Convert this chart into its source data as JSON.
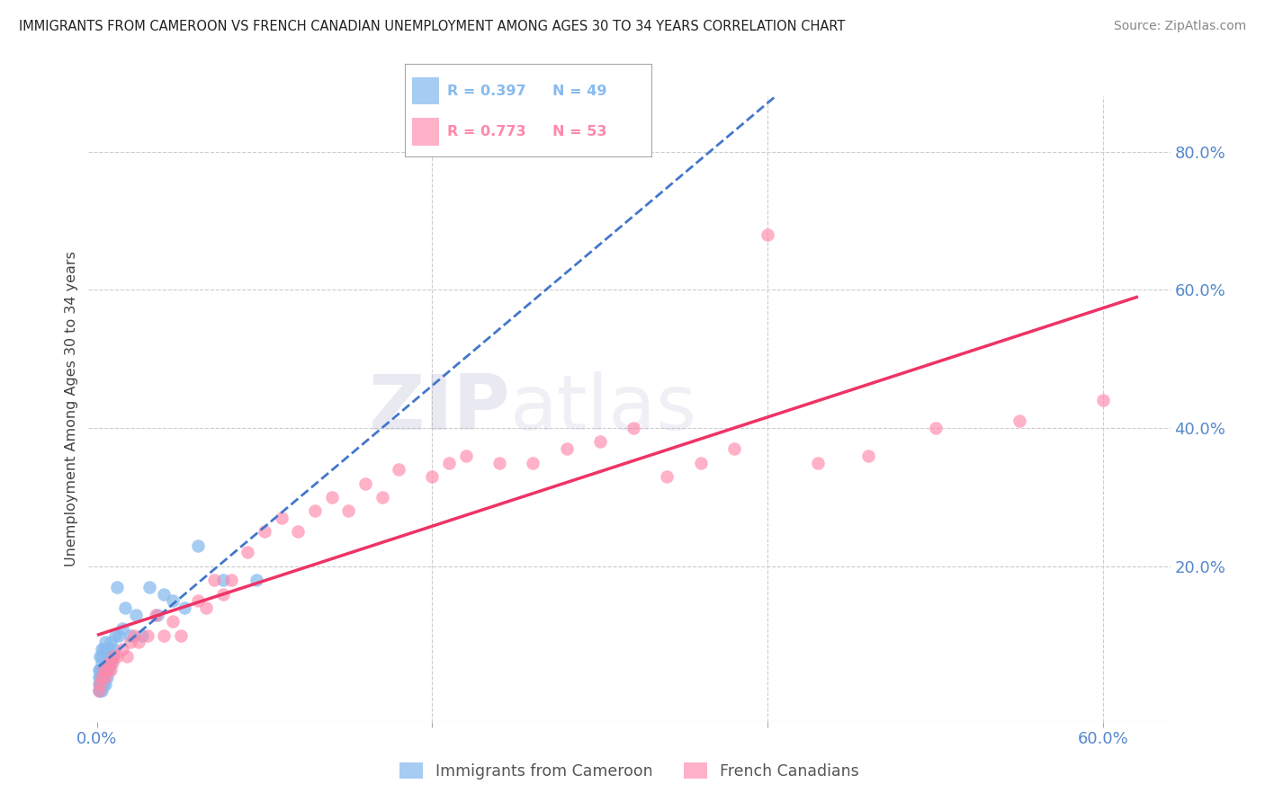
{
  "title": "IMMIGRANTS FROM CAMEROON VS FRENCH CANADIAN UNEMPLOYMENT AMONG AGES 30 TO 34 YEARS CORRELATION CHART",
  "source": "Source: ZipAtlas.com",
  "ylabel": "Unemployment Among Ages 30 to 34 years",
  "legend_labels": [
    "Immigrants from Cameroon",
    "French Canadians"
  ],
  "blue_r": "R = 0.397",
  "blue_n": "N = 49",
  "pink_r": "R = 0.773",
  "pink_n": "N = 53",
  "blue_color": "#88bbee",
  "pink_color": "#ff88aa",
  "blue_line_color": "#4477cc",
  "pink_line_color": "#ee3366",
  "xlim": [
    -0.005,
    0.64
  ],
  "ylim": [
    -0.025,
    0.88
  ],
  "watermark_zip": "ZIP",
  "watermark_atlas": "atlas",
  "background_color": "#ffffff",
  "grid_color": "#cccccc",
  "blue_x": [
    0.001,
    0.001,
    0.001,
    0.001,
    0.002,
    0.002,
    0.002,
    0.002,
    0.002,
    0.003,
    0.003,
    0.003,
    0.003,
    0.003,
    0.003,
    0.003,
    0.004,
    0.004,
    0.004,
    0.004,
    0.005,
    0.005,
    0.005,
    0.005,
    0.006,
    0.006,
    0.006,
    0.007,
    0.007,
    0.008,
    0.008,
    0.009,
    0.01,
    0.011,
    0.012,
    0.013,
    0.015,
    0.017,
    0.02,
    0.023,
    0.027,
    0.031,
    0.036,
    0.04,
    0.045,
    0.052,
    0.06,
    0.075,
    0.095
  ],
  "blue_y": [
    0.02,
    0.03,
    0.04,
    0.05,
    0.02,
    0.03,
    0.04,
    0.05,
    0.07,
    0.02,
    0.03,
    0.04,
    0.05,
    0.06,
    0.07,
    0.08,
    0.03,
    0.04,
    0.05,
    0.08,
    0.03,
    0.05,
    0.06,
    0.09,
    0.04,
    0.06,
    0.08,
    0.05,
    0.08,
    0.06,
    0.09,
    0.07,
    0.08,
    0.1,
    0.17,
    0.1,
    0.11,
    0.14,
    0.1,
    0.13,
    0.1,
    0.17,
    0.13,
    0.16,
    0.15,
    0.14,
    0.23,
    0.18,
    0.18
  ],
  "pink_x": [
    0.001,
    0.002,
    0.003,
    0.004,
    0.005,
    0.006,
    0.007,
    0.008,
    0.009,
    0.01,
    0.012,
    0.015,
    0.018,
    0.02,
    0.022,
    0.025,
    0.03,
    0.035,
    0.04,
    0.045,
    0.05,
    0.06,
    0.065,
    0.07,
    0.075,
    0.08,
    0.09,
    0.1,
    0.11,
    0.12,
    0.13,
    0.14,
    0.15,
    0.16,
    0.17,
    0.18,
    0.2,
    0.21,
    0.22,
    0.24,
    0.26,
    0.28,
    0.3,
    0.32,
    0.34,
    0.36,
    0.38,
    0.4,
    0.43,
    0.46,
    0.5,
    0.55,
    0.6
  ],
  "pink_y": [
    0.02,
    0.03,
    0.04,
    0.05,
    0.04,
    0.05,
    0.06,
    0.05,
    0.06,
    0.07,
    0.07,
    0.08,
    0.07,
    0.09,
    0.1,
    0.09,
    0.1,
    0.13,
    0.1,
    0.12,
    0.1,
    0.15,
    0.14,
    0.18,
    0.16,
    0.18,
    0.22,
    0.25,
    0.27,
    0.25,
    0.28,
    0.3,
    0.28,
    0.32,
    0.3,
    0.34,
    0.33,
    0.35,
    0.36,
    0.35,
    0.35,
    0.37,
    0.38,
    0.4,
    0.33,
    0.35,
    0.37,
    0.68,
    0.35,
    0.36,
    0.4,
    0.41,
    0.44
  ]
}
